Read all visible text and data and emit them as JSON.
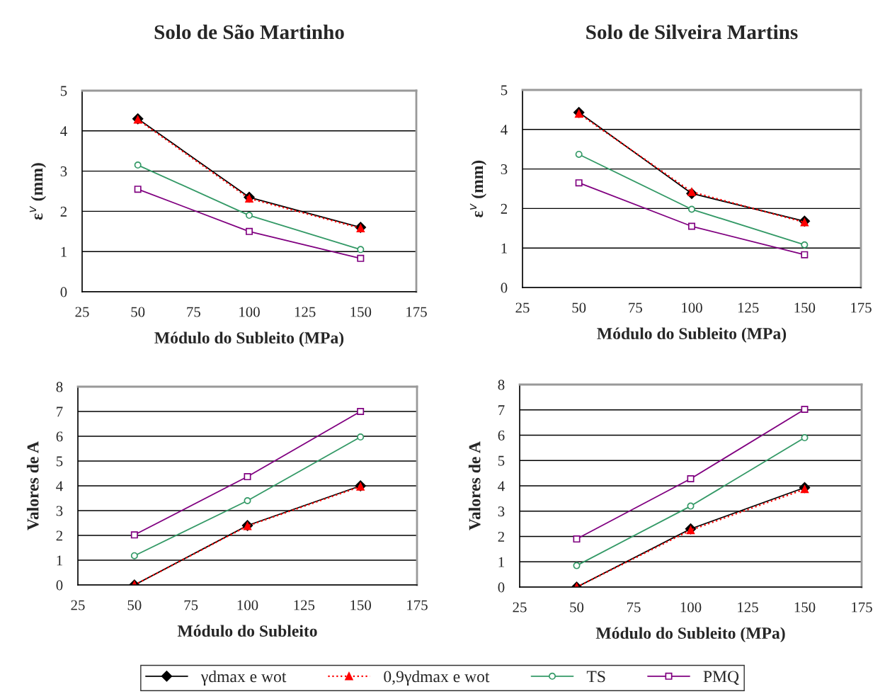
{
  "chart_data": [
    {
      "type": "line",
      "title": "Solo de São Martinho",
      "xlabel": "Módulo do Subleito (MPa)",
      "ylabel": "ε$^{v}$ (mm)",
      "x": [
        50,
        100,
        150
      ],
      "xlim": [
        25,
        175
      ],
      "xticks": [
        25,
        50,
        75,
        100,
        125,
        150,
        175
      ],
      "ylim": [
        0,
        5
      ],
      "yticks": [
        0,
        1,
        2,
        3,
        4,
        5
      ],
      "grid": "y",
      "legend": "bottom",
      "series": [
        {
          "name": "γdmax e wot",
          "color": "#000000",
          "marker": "diamond",
          "line_style": "solid",
          "values": [
            4.3,
            2.35,
            1.6
          ]
        },
        {
          "name": "0,9γdmax e wot",
          "color": "#ff0000",
          "marker": "triangle",
          "line_style": "dotted",
          "values": [
            4.28,
            2.32,
            1.58
          ]
        },
        {
          "name": "TS",
          "color": "#339966",
          "marker": "circle",
          "line_style": "solid",
          "values": [
            3.15,
            1.9,
            1.05
          ]
        },
        {
          "name": "PMQ",
          "color": "#800080",
          "marker": "square",
          "line_style": "solid",
          "values": [
            2.55,
            1.5,
            0.83
          ]
        }
      ]
    },
    {
      "type": "line",
      "title": "Solo de Silveira Martins",
      "xlabel": "Módulo do Subleito (MPa)",
      "ylabel": "ε$^{v}$ (mm)",
      "x": [
        50,
        100,
        150
      ],
      "xlim": [
        25,
        175
      ],
      "xticks": [
        25,
        50,
        75,
        100,
        125,
        150,
        175
      ],
      "ylim": [
        0,
        5
      ],
      "yticks": [
        0,
        1,
        2,
        3,
        4,
        5
      ],
      "grid": "y",
      "series": [
        {
          "color": "#000000",
          "marker": "diamond",
          "line_style": "solid",
          "values": [
            4.43,
            2.38,
            1.68
          ]
        },
        {
          "color": "#ff0000",
          "marker": "triangle",
          "line_style": "dotted",
          "values": [
            4.4,
            2.42,
            1.65
          ]
        },
        {
          "color": "#339966",
          "marker": "circle",
          "line_style": "solid",
          "values": [
            3.37,
            1.98,
            1.08
          ]
        },
        {
          "color": "#800080",
          "marker": "square",
          "line_style": "solid",
          "values": [
            2.65,
            1.55,
            0.83
          ]
        }
      ]
    },
    {
      "type": "line",
      "xlabel": "Módulo do Subleito",
      "ylabel": "Valores de A",
      "x": [
        50,
        100,
        150
      ],
      "xlim": [
        25,
        175
      ],
      "xticks": [
        25,
        50,
        75,
        100,
        125,
        150,
        175
      ],
      "ylim": [
        0,
        8
      ],
      "yticks": [
        0,
        1,
        2,
        3,
        4,
        5,
        6,
        7,
        8
      ],
      "grid": "y",
      "series": [
        {
          "color": "#000000",
          "marker": "diamond",
          "line_style": "solid",
          "values": [
            0,
            2.4,
            4.0
          ]
        },
        {
          "color": "#ff0000",
          "marker": "triangle",
          "line_style": "dotted",
          "values": [
            0,
            2.38,
            3.97
          ]
        },
        {
          "color": "#339966",
          "marker": "circle",
          "line_style": "solid",
          "values": [
            1.18,
            3.4,
            5.97
          ]
        },
        {
          "color": "#800080",
          "marker": "square",
          "line_style": "solid",
          "values": [
            2.02,
            4.37,
            7.0
          ]
        }
      ]
    },
    {
      "type": "line",
      "xlabel": "Módulo do Subleito (MPa)",
      "ylabel": "Valores de A",
      "x": [
        50,
        100,
        150
      ],
      "xlim": [
        25,
        175
      ],
      "xticks": [
        25,
        50,
        75,
        100,
        125,
        150,
        175
      ],
      "ylim": [
        0,
        8
      ],
      "yticks": [
        0,
        1,
        2,
        3,
        4,
        5,
        6,
        7,
        8
      ],
      "grid": "y",
      "series": [
        {
          "color": "#000000",
          "marker": "diamond",
          "line_style": "solid",
          "values": [
            0,
            2.3,
            3.93
          ]
        },
        {
          "color": "#ff0000",
          "marker": "triangle",
          "line_style": "dotted",
          "values": [
            0,
            2.25,
            3.87
          ]
        },
        {
          "color": "#339966",
          "marker": "circle",
          "line_style": "solid",
          "values": [
            0.85,
            3.2,
            5.9
          ]
        },
        {
          "color": "#800080",
          "marker": "square",
          "line_style": "solid",
          "values": [
            1.9,
            4.28,
            7.02
          ]
        }
      ]
    }
  ]
}
